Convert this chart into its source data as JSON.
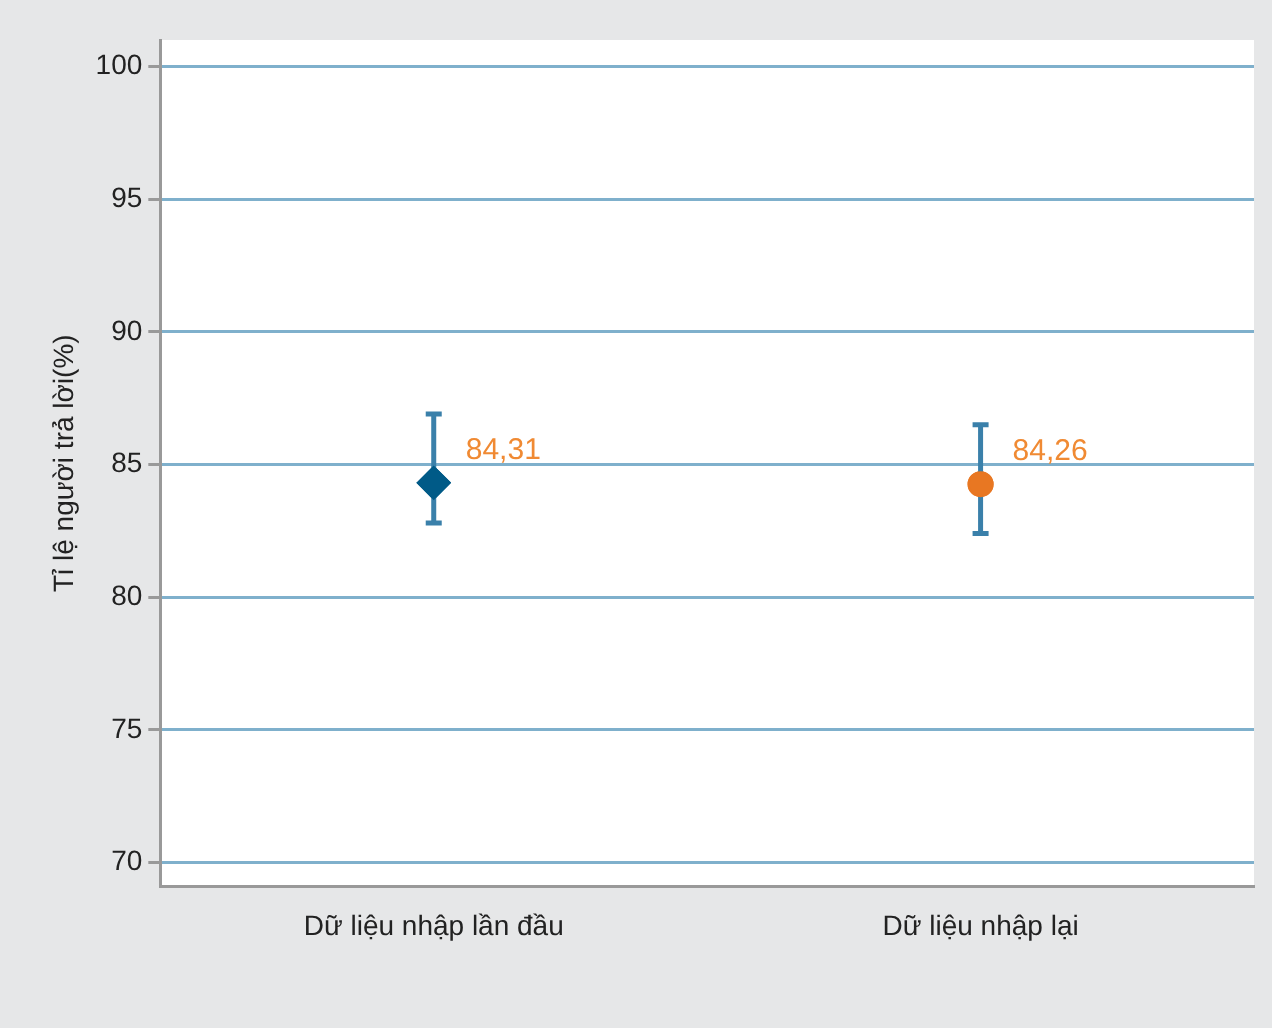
{
  "chart_data": {
    "type": "scatter",
    "ylabel": "Tỉ lệ người trả lời(%)",
    "categories": [
      "Dữ liệu nhập lần đầu",
      "Dữ liệu nhập lại"
    ],
    "series": [
      {
        "color": "#005a87",
        "marker": "diamond",
        "values": [
          84.31,
          null
        ],
        "value_labels": [
          "84,31",
          null
        ],
        "errors": [
          [
            82.8,
            86.9
          ],
          null
        ]
      },
      {
        "color": "#e87722",
        "marker": "circle",
        "values": [
          null,
          84.26
        ],
        "value_labels": [
          null,
          "84,26"
        ],
        "errors": [
          null,
          [
            82.4,
            86.5
          ]
        ]
      }
    ],
    "ylim": [
      69.1,
      101
    ],
    "yticks": [
      70,
      75,
      80,
      85,
      90,
      95,
      100
    ],
    "grid": "y",
    "legend": false
  }
}
